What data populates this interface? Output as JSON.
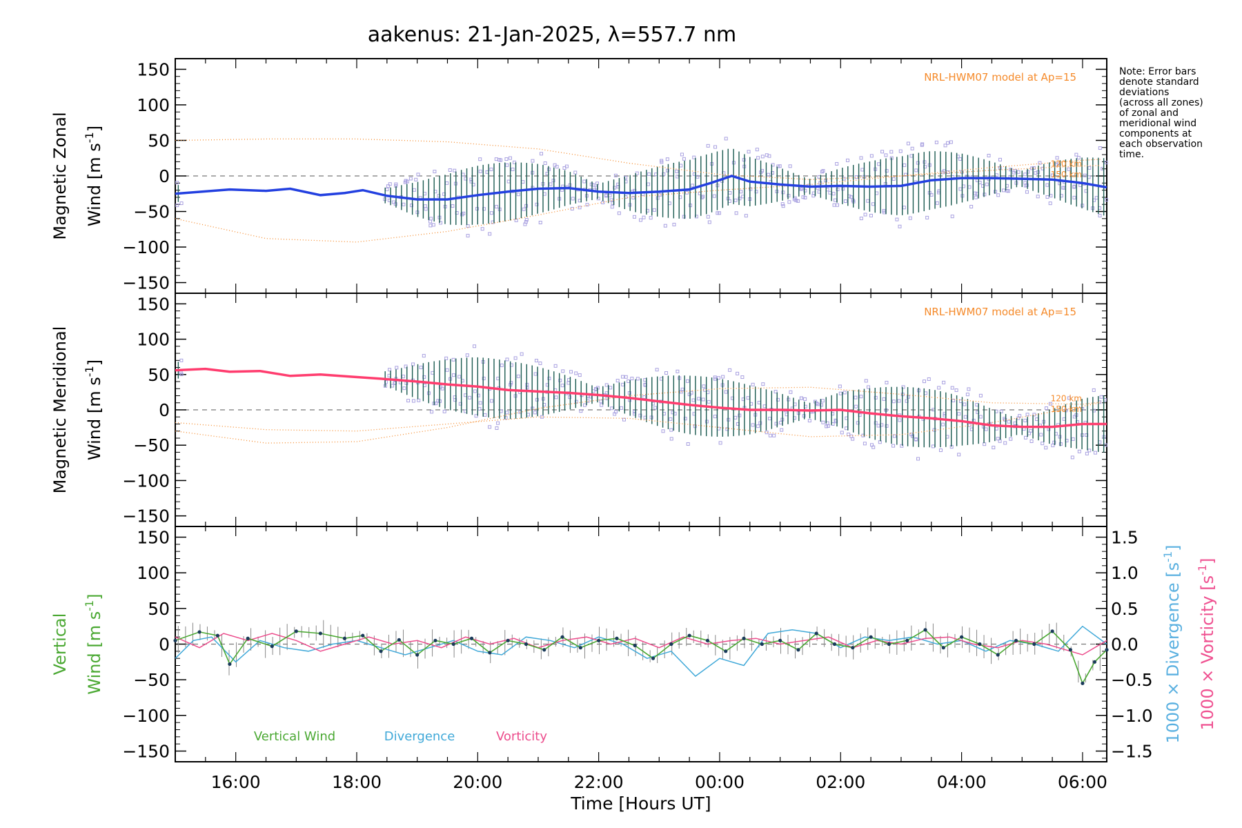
{
  "title": "aakenus: 21-Jan-2025, λ=557.7 nm",
  "note": [
    "Note: Error bars",
    "denote standard",
    "deviations",
    "(across all zones)",
    "of zonal and",
    "meridional wind",
    "components at",
    "each observation",
    "time."
  ],
  "colors": {
    "zonal_fit": "#2340e0",
    "meridional_fit": "#ff3c6e",
    "scatter": "#a8a0e0",
    "model": "#f58a2a",
    "vertical": "#4aa832",
    "divergence": "#3fa8d8",
    "vorticity": "#ec4b8b",
    "errorbar": "#1a5a50",
    "divergence_label": "#5ab0e0",
    "vorticity_label": "#ef5090"
  },
  "chart_data": [
    {
      "type": "line",
      "panel": "zonal",
      "ylabel_line1": "Magnetic Zonal",
      "ylabel_line2": "Wind [m s",
      "ylabel_sup": "-1",
      "ylabel_close": "]",
      "model_label": "NRL-HWM07 model at Ap=15",
      "alt_labels": [
        "120 km",
        "150 km"
      ],
      "xlim": [
        15.0,
        30.4
      ],
      "ylim": [
        -165,
        165
      ],
      "yticks": [
        -150,
        -100,
        -50,
        0,
        50,
        100,
        150
      ],
      "series": [
        {
          "name": "Zonal wind",
          "x": [
            15.0,
            15.9,
            16.5,
            16.9,
            17.4,
            17.8,
            18.1,
            18.5,
            19.0,
            19.5,
            20.0,
            20.5,
            21.0,
            21.5,
            22.0,
            22.5,
            23.0,
            23.5,
            23.85,
            24.2,
            24.5,
            25.0,
            25.5,
            26.0,
            26.5,
            27.0,
            27.5,
            28.0,
            28.5,
            29.0,
            29.5,
            30.0,
            30.4
          ],
          "y": [
            -25,
            -19,
            -21,
            -18,
            -27,
            -24,
            -20,
            -28,
            -33,
            -33,
            -27,
            -22,
            -18,
            -17,
            -22,
            -24,
            -22,
            -19,
            -10,
            0,
            -8,
            -12,
            -15,
            -14,
            -15,
            -14,
            -6,
            -3,
            -3,
            -4,
            -5,
            -10,
            -16
          ]
        },
        {
          "name": "NRL-HWM07 120 km",
          "x": [
            15.0,
            16.5,
            18.0,
            19.5,
            21.0,
            22.5,
            24.0,
            25.5,
            27.0,
            28.5,
            30.0,
            30.4
          ],
          "y": [
            50,
            52,
            52,
            48,
            38,
            18,
            2,
            -5,
            0,
            12,
            22,
            24
          ]
        },
        {
          "name": "NRL-HWM07 150 km",
          "x": [
            15.0,
            16.5,
            18.0,
            19.5,
            21.0,
            22.5,
            24.0,
            25.5,
            27.0,
            28.5,
            30.0,
            30.4
          ],
          "y": [
            -60,
            -88,
            -93,
            -78,
            -55,
            -30,
            -20,
            -12,
            0,
            8,
            14,
            15
          ]
        }
      ]
    },
    {
      "type": "line",
      "panel": "meridional",
      "ylabel_line1": "Magnetic Meridional",
      "ylabel_line2": "Wind [m s",
      "ylabel_sup": "-1",
      "ylabel_close": "]",
      "model_label": "NRL-HWM07 model at Ap=15",
      "alt_labels": [
        "120 km",
        "150 km"
      ],
      "xlim": [
        15.0,
        30.4
      ],
      "ylim": [
        -165,
        165
      ],
      "yticks": [
        -150,
        -100,
        -50,
        0,
        50,
        100,
        150
      ],
      "series": [
        {
          "name": "Meridional wind",
          "x": [
            15.0,
            15.5,
            15.9,
            16.4,
            16.9,
            17.4,
            17.9,
            18.4,
            19.0,
            19.5,
            20.0,
            20.5,
            21.0,
            21.5,
            22.0,
            22.5,
            23.0,
            23.5,
            24.0,
            24.5,
            25.0,
            25.5,
            26.0,
            26.5,
            27.0,
            27.5,
            28.0,
            28.5,
            29.0,
            29.5,
            30.0,
            30.4
          ],
          "y": [
            56,
            58,
            54,
            55,
            48,
            50,
            47,
            44,
            40,
            36,
            33,
            28,
            26,
            24,
            21,
            17,
            12,
            7,
            3,
            0,
            0,
            -1,
            0,
            -5,
            -9,
            -12,
            -16,
            -22,
            -24,
            -24,
            -20,
            -20
          ]
        },
        {
          "name": "NRL-HWM07 120 km",
          "x": [
            15.0,
            16.5,
            18.0,
            19.5,
            21.0,
            22.5,
            24.0,
            25.5,
            27.0,
            28.5,
            30.0,
            30.4
          ],
          "y": [
            -18,
            -28,
            -30,
            -20,
            -10,
            -12,
            -25,
            -38,
            -35,
            -18,
            5,
            12
          ]
        },
        {
          "name": "NRL-HWM07 150 km",
          "x": [
            15.0,
            16.5,
            18.0,
            19.5,
            21.0,
            22.5,
            24.0,
            25.5,
            27.0,
            28.5,
            30.0,
            30.4
          ],
          "y": [
            -30,
            -47,
            -45,
            -25,
            2,
            20,
            30,
            32,
            22,
            10,
            8,
            12
          ]
        }
      ]
    },
    {
      "type": "line",
      "panel": "vertical",
      "ylabel_line1": "Vertical",
      "ylabel_line2": "Wind [m s",
      "ylabel_sup": "-1",
      "ylabel_close": "]",
      "right_ylabel_div": "1000 × Divergence [s",
      "right_ylabel_vort": "1000 × Vorticity [s",
      "right_ylabel_sup": "-1",
      "right_ylabel_close": "]",
      "xlim": [
        15.0,
        30.4
      ],
      "ylim": [
        -165,
        165
      ],
      "yticks": [
        -150,
        -100,
        -50,
        0,
        50,
        100,
        150
      ],
      "right_ylim": [
        -1.65,
        1.65
      ],
      "right_yticks": [
        -1.5,
        -1.0,
        -0.5,
        0.0,
        0.5,
        1.0,
        1.5
      ],
      "right_tick_labels": [
        "−1.5",
        "−1.0",
        "−0.5",
        "0.0",
        "0.5",
        "1.0",
        "1.5"
      ],
      "legend": [
        "Vertical Wind",
        "Divergence",
        "Vorticity"
      ],
      "xlabel": "Time [Hours UT]",
      "xticks": [
        16,
        18,
        20,
        22,
        24,
        26,
        28,
        30
      ],
      "xtick_labels": [
        "16:00",
        "18:00",
        "20:00",
        "22:00",
        "00:00",
        "02:00",
        "04:00",
        "06:00"
      ],
      "series": [
        {
          "name": "Vertical Wind",
          "x": [
            15.0,
            15.4,
            15.7,
            15.9,
            16.2,
            16.6,
            17.0,
            17.4,
            17.8,
            18.1,
            18.4,
            18.7,
            19.0,
            19.3,
            19.6,
            19.9,
            20.2,
            20.5,
            20.8,
            21.1,
            21.4,
            21.7,
            22.0,
            22.3,
            22.6,
            22.9,
            23.2,
            23.5,
            23.8,
            24.1,
            24.4,
            24.7,
            25.0,
            25.3,
            25.6,
            25.9,
            26.2,
            26.5,
            26.8,
            27.1,
            27.4,
            27.7,
            28.0,
            28.3,
            28.6,
            28.9,
            29.2,
            29.5,
            29.8,
            30.0,
            30.2,
            30.4
          ],
          "y": [
            5,
            17,
            12,
            -28,
            8,
            -3,
            18,
            15,
            8,
            12,
            -10,
            6,
            -15,
            5,
            0,
            8,
            -12,
            5,
            0,
            -8,
            10,
            -5,
            5,
            8,
            -2,
            -20,
            0,
            12,
            5,
            -10,
            8,
            0,
            5,
            -8,
            15,
            0,
            -5,
            10,
            0,
            5,
            20,
            -5,
            10,
            0,
            -15,
            5,
            0,
            18,
            -8,
            -55,
            -25,
            -8
          ]
        },
        {
          "name": "Divergence",
          "x": [
            15.0,
            15.3,
            15.6,
            16.0,
            16.4,
            16.8,
            17.2,
            17.6,
            18.0,
            18.4,
            18.8,
            19.2,
            19.6,
            20.0,
            20.4,
            20.8,
            21.2,
            21.6,
            22.0,
            22.4,
            22.8,
            23.2,
            23.6,
            24.0,
            24.4,
            24.8,
            25.2,
            25.6,
            26.0,
            26.4,
            26.8,
            27.2,
            27.6,
            28.0,
            28.4,
            28.8,
            29.2,
            29.6,
            30.0,
            30.4
          ],
          "y": [
            -0.2,
            0.05,
            0.1,
            -0.25,
            0.05,
            -0.05,
            -0.1,
            0.0,
            0.05,
            -0.05,
            -0.15,
            -0.05,
            0.05,
            -0.1,
            -0.15,
            0.1,
            0.05,
            -0.05,
            0.1,
            0.0,
            -0.2,
            -0.1,
            -0.45,
            -0.2,
            -0.3,
            0.15,
            0.2,
            0.15,
            -0.05,
            0.1,
            0.05,
            0.1,
            0.0,
            0.05,
            -0.1,
            0.05,
            0.0,
            -0.1,
            0.25,
            0.0
          ]
        },
        {
          "name": "Vorticity",
          "x": [
            15.0,
            15.4,
            15.8,
            16.2,
            16.6,
            17.0,
            17.4,
            17.8,
            18.2,
            18.6,
            19.0,
            19.4,
            19.8,
            20.2,
            20.6,
            21.0,
            21.4,
            21.8,
            22.2,
            22.6,
            23.0,
            23.4,
            23.8,
            24.2,
            24.6,
            25.0,
            25.4,
            25.8,
            26.2,
            26.6,
            27.0,
            27.4,
            27.8,
            28.2,
            28.6,
            29.0,
            29.4,
            29.8,
            30.0,
            30.4
          ],
          "y": [
            0.1,
            -0.05,
            0.15,
            0.05,
            0.15,
            0.05,
            -0.1,
            0.0,
            0.1,
            0.0,
            0.05,
            -0.05,
            0.1,
            0.0,
            0.08,
            -0.05,
            0.05,
            0.1,
            0.0,
            0.08,
            -0.05,
            0.1,
            0.0,
            0.05,
            0.08,
            0.0,
            0.05,
            0.1,
            -0.05,
            0.05,
            0.0,
            0.08,
            0.1,
            0.0,
            -0.05,
            0.05,
            0.0,
            -0.1,
            -0.15,
            0.05
          ]
        }
      ]
    }
  ]
}
